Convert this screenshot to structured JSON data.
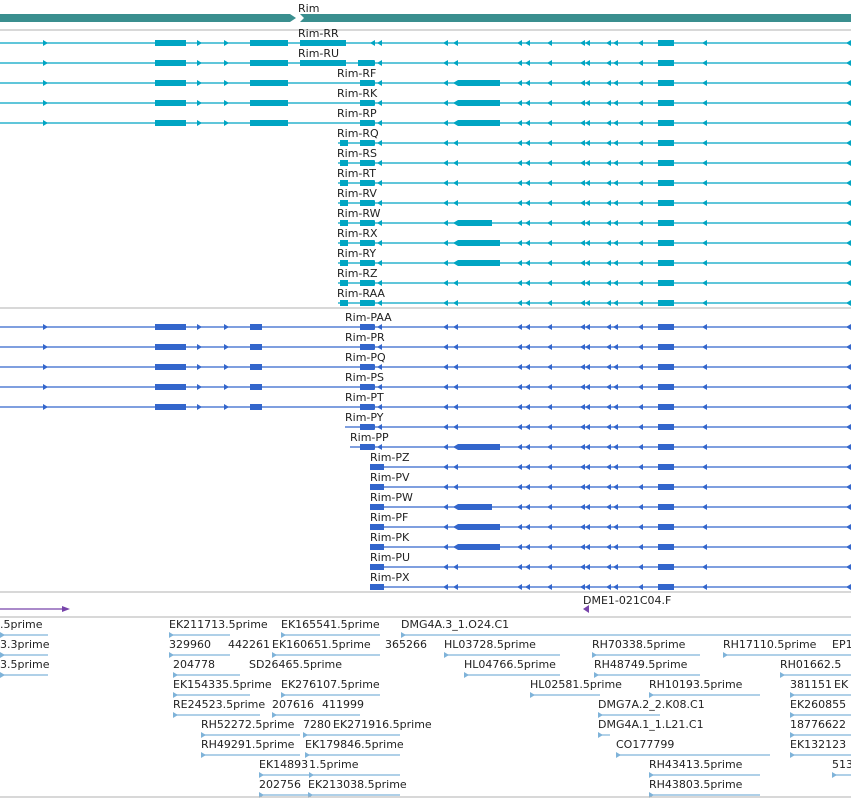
{
  "colors": {
    "gene": "#3a8f8f",
    "rna": "#00a5c3",
    "protein": "#3366cc",
    "bac": "#7744aa",
    "est": "#7fb3d9",
    "divider": "#b0b0b0"
  },
  "gene_label": "Rim",
  "transcripts": [
    "Rim-RR",
    "Rim-RU",
    "Rim-RF",
    "Rim-RK",
    "Rim-RP",
    "Rim-RQ",
    "Rim-RS",
    "Rim-RT",
    "Rim-RV",
    "Rim-RW",
    "Rim-RX",
    "Rim-RY",
    "Rim-RZ",
    "Rim-RAA"
  ],
  "proteins": [
    "Rim-PAA",
    "Rim-PR",
    "Rim-PQ",
    "Rim-PS",
    "Rim-PT",
    "Rim-PY",
    "Rim-PP",
    "Rim-PZ",
    "Rim-PV",
    "Rim-PW",
    "Rim-PF",
    "Rim-PK",
    "Rim-PU",
    "Rim-PX"
  ],
  "bac_label": "DME1-021C04.F",
  "ests": [
    ".5prime",
    "3.3prime",
    "3.5prime",
    "EK211713.5prime",
    "EK165541.5prime",
    "DMG4A.3_1.O24.C1",
    "329960",
    "442261",
    "EK160651.5prime",
    "365266",
    "HL03728.5prime",
    "RH70338.5prime",
    "RH17110.5prime",
    "EP1",
    "204778",
    "SD26465.5prime",
    "HL04766.5prime",
    "RH48749.5prime",
    "RH01662.5",
    "EK154335.5prime",
    "EK276107.5prime",
    "HL02581.5prime",
    "RH10193.5prime",
    "381151",
    "EK",
    "RE24523.5prime",
    "207616",
    "411999",
    "DMG7A.2_2.K08.C1",
    "EK260855",
    "RH52272.5prime",
    "7280",
    "EK271916.5prime",
    "DMG4A.1_1.L21.C1",
    "18776622",
    "RH49291.5prime",
    "EK179846.5prime",
    "CO177799",
    "EK132123",
    "EK14893",
    "1.5prime",
    "RH43413.5prime",
    "513",
    "202756",
    "EK213038.5prime",
    "RH43803.5prime"
  ]
}
